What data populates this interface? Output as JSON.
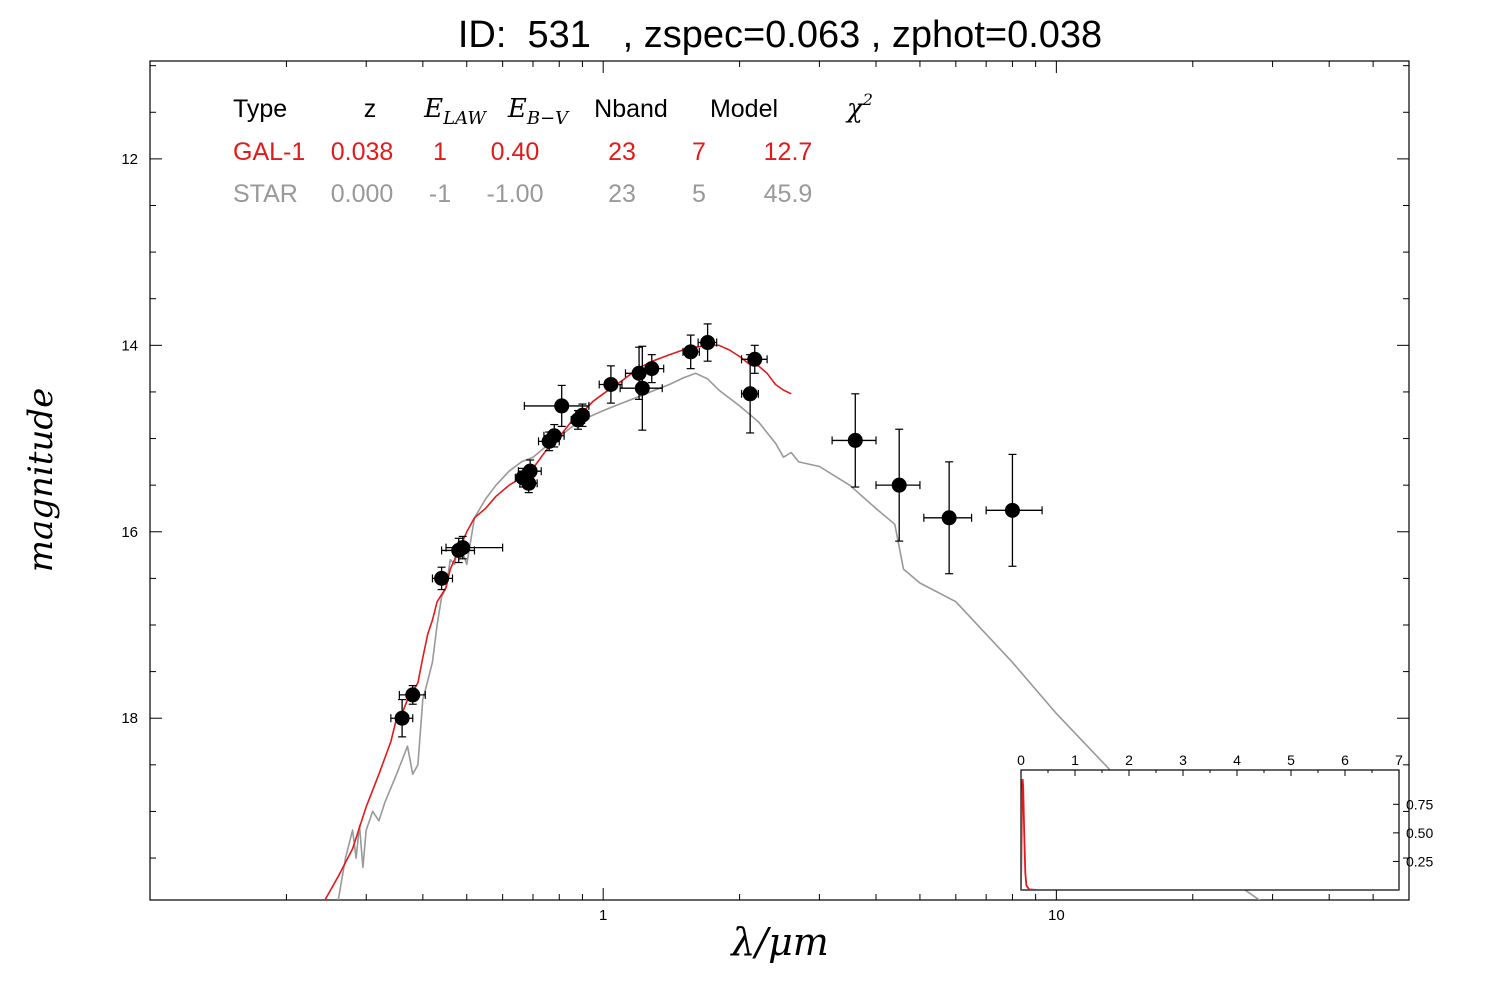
{
  "title": "ID:  531   , zspec=0.063 , zphot=0.038",
  "chart_data": [
    {
      "type": "scatter",
      "title": "ID:  531   , zspec=0.063 , zphot=0.038",
      "xlabel": "λ/μm",
      "ylabel": "magnitude",
      "xscale": "log",
      "xlim": [
        0.1,
        60
      ],
      "ylim": [
        19.95,
        10.95
      ],
      "y_inverted": true,
      "x_ticks": [
        {
          "value": 1,
          "label": "1"
        },
        {
          "value": 10,
          "label": "10"
        }
      ],
      "y_ticks": [
        {
          "value": 12,
          "label": "12"
        },
        {
          "value": 14,
          "label": "14"
        },
        {
          "value": 16,
          "label": "16"
        },
        {
          "value": 18,
          "label": "18"
        }
      ],
      "colors": {
        "galaxy": "#e31a1c",
        "star": "#999999",
        "points": "#000000"
      },
      "legend_table": {
        "headers": [
          "Type",
          "z",
          "E_LAW",
          "E_B-V",
          "Nband",
          "Model",
          "χ²"
        ],
        "rows": [
          {
            "cells": [
              "GAL-1",
              "0.038",
              "1",
              "0.40",
              "23",
              "7",
              "12.7"
            ],
            "color": "#e31a1c"
          },
          {
            "cells": [
              "STAR",
              "0.000",
              "-1",
              "-1.00",
              "23",
              "5",
              "45.9"
            ],
            "color": "#999999"
          }
        ]
      },
      "points": [
        {
          "x": 0.36,
          "y": 18.0,
          "xerr": [
            0.34,
            0.38
          ],
          "yerr": 0.2
        },
        {
          "x": 0.38,
          "y": 17.75,
          "xerr": [
            0.355,
            0.405
          ],
          "yerr": 0.1
        },
        {
          "x": 0.44,
          "y": 16.5,
          "xerr": [
            0.42,
            0.465
          ],
          "yerr": 0.12
        },
        {
          "x": 0.48,
          "y": 16.2,
          "xerr": [
            0.44,
            0.52
          ],
          "yerr": 0.13
        },
        {
          "x": 0.49,
          "y": 16.17,
          "xerr": [
            0.45,
            0.6
          ],
          "yerr": 0.12
        },
        {
          "x": 0.665,
          "y": 15.42,
          "xerr": [
            0.64,
            0.69
          ],
          "yerr": 0.1
        },
        {
          "x": 0.685,
          "y": 15.48,
          "xerr": [
            0.655,
            0.715
          ],
          "yerr": 0.1
        },
        {
          "x": 0.69,
          "y": 15.35,
          "xerr": [
            0.65,
            0.73
          ],
          "yerr": 0.12
        },
        {
          "x": 0.76,
          "y": 15.03,
          "xerr": [
            0.72,
            0.8
          ],
          "yerr": 0.1
        },
        {
          "x": 0.78,
          "y": 14.97,
          "xerr": [
            0.74,
            0.82
          ],
          "yerr": 0.12
        },
        {
          "x": 0.81,
          "y": 14.65,
          "xerr": [
            0.67,
            0.93
          ],
          "yerr": 0.22
        },
        {
          "x": 0.88,
          "y": 14.8,
          "xerr": [
            0.85,
            0.91
          ],
          "yerr": 0.1
        },
        {
          "x": 0.9,
          "y": 14.75,
          "xerr": [
            0.87,
            0.93
          ],
          "yerr": 0.12
        },
        {
          "x": 1.04,
          "y": 14.42,
          "xerr": [
            0.98,
            1.1
          ],
          "yerr": 0.2
        },
        {
          "x": 1.2,
          "y": 14.3,
          "xerr": [
            1.12,
            1.28
          ],
          "yerr": 0.28
        },
        {
          "x": 1.22,
          "y": 14.46,
          "xerr": [
            1.09,
            1.35
          ],
          "yerr": 0.45
        },
        {
          "x": 1.28,
          "y": 14.25,
          "xerr": [
            1.2,
            1.36
          ],
          "yerr": 0.15
        },
        {
          "x": 1.56,
          "y": 14.07,
          "xerr": [
            1.5,
            1.63
          ],
          "yerr": 0.18
        },
        {
          "x": 1.7,
          "y": 13.97,
          "xerr": [
            1.62,
            1.78
          ],
          "yerr": 0.2
        },
        {
          "x": 2.16,
          "y": 14.15,
          "xerr": [
            2.02,
            2.3
          ],
          "yerr": 0.15
        },
        {
          "x": 2.11,
          "y": 14.52,
          "xerr": [
            2.02,
            2.2
          ],
          "yerr": 0.42
        },
        {
          "x": 3.6,
          "y": 15.02,
          "xerr": [
            3.2,
            4.0
          ],
          "yerr": 0.5
        },
        {
          "x": 4.5,
          "y": 15.5,
          "xerr": [
            4.0,
            5.0
          ],
          "yerr": 0.6
        },
        {
          "x": 5.8,
          "y": 15.85,
          "xerr": [
            5.1,
            6.5
          ],
          "yerr": 0.6
        },
        {
          "x": 8.0,
          "y": 15.77,
          "xerr": [
            7.0,
            9.3
          ],
          "yerr": 0.6
        }
      ],
      "series": [
        {
          "color": "#e31a1c",
          "points": [
            [
              0.24,
              20.0
            ],
            [
              0.26,
              19.7
            ],
            [
              0.28,
              19.4
            ],
            [
              0.3,
              18.95
            ],
            [
              0.32,
              18.6
            ],
            [
              0.34,
              18.25
            ],
            [
              0.35,
              18.0
            ],
            [
              0.36,
              17.95
            ],
            [
              0.37,
              17.8
            ],
            [
              0.39,
              17.62
            ],
            [
              0.4,
              17.35
            ],
            [
              0.41,
              17.1
            ],
            [
              0.42,
              16.95
            ],
            [
              0.43,
              16.75
            ],
            [
              0.45,
              16.6
            ],
            [
              0.46,
              16.4
            ],
            [
              0.48,
              16.2
            ],
            [
              0.5,
              16.0
            ],
            [
              0.52,
              15.85
            ],
            [
              0.55,
              15.75
            ],
            [
              0.58,
              15.62
            ],
            [
              0.62,
              15.5
            ],
            [
              0.66,
              15.42
            ],
            [
              0.7,
              15.32
            ],
            [
              0.75,
              15.12
            ],
            [
              0.8,
              14.98
            ],
            [
              0.85,
              14.82
            ],
            [
              0.9,
              14.72
            ],
            [
              0.95,
              14.6
            ],
            [
              1.0,
              14.52
            ],
            [
              1.1,
              14.38
            ],
            [
              1.2,
              14.24
            ],
            [
              1.3,
              14.16
            ],
            [
              1.4,
              14.1
            ],
            [
              1.5,
              14.05
            ],
            [
              1.6,
              14.02
            ],
            [
              1.7,
              14.0
            ],
            [
              1.8,
              14.0
            ],
            [
              1.9,
              14.05
            ],
            [
              2.0,
              14.12
            ],
            [
              2.1,
              14.2
            ],
            [
              2.2,
              14.22
            ],
            [
              2.3,
              14.3
            ],
            [
              2.4,
              14.42
            ],
            [
              2.5,
              14.48
            ],
            [
              2.6,
              14.52
            ]
          ]
        },
        {
          "color": "#999999",
          "points": [
            [
              0.255,
              20.2
            ],
            [
              0.27,
              19.5
            ],
            [
              0.28,
              19.2
            ],
            [
              0.285,
              19.5
            ],
            [
              0.29,
              19.15
            ],
            [
              0.295,
              19.6
            ],
            [
              0.3,
              19.2
            ],
            [
              0.31,
              19.0
            ],
            [
              0.32,
              19.1
            ],
            [
              0.33,
              18.9
            ],
            [
              0.35,
              18.6
            ],
            [
              0.37,
              18.3
            ],
            [
              0.38,
              18.6
            ],
            [
              0.39,
              18.5
            ],
            [
              0.4,
              17.8
            ],
            [
              0.41,
              17.6
            ],
            [
              0.42,
              17.4
            ],
            [
              0.43,
              17.0
            ],
            [
              0.44,
              16.7
            ],
            [
              0.45,
              16.6
            ],
            [
              0.46,
              16.3
            ],
            [
              0.47,
              16.35
            ],
            [
              0.48,
              16.1
            ],
            [
              0.5,
              16.35
            ],
            [
              0.52,
              15.85
            ],
            [
              0.55,
              15.65
            ],
            [
              0.58,
              15.5
            ],
            [
              0.62,
              15.35
            ],
            [
              0.66,
              15.25
            ],
            [
              0.7,
              15.2
            ],
            [
              0.75,
              15.08
            ],
            [
              0.8,
              14.98
            ],
            [
              0.85,
              14.88
            ],
            [
              0.9,
              14.8
            ],
            [
              1.0,
              14.7
            ],
            [
              1.1,
              14.62
            ],
            [
              1.2,
              14.55
            ],
            [
              1.3,
              14.48
            ],
            [
              1.4,
              14.42
            ],
            [
              1.5,
              14.35
            ],
            [
              1.6,
              14.3
            ],
            [
              1.7,
              14.36
            ],
            [
              1.8,
              14.48
            ],
            [
              2.0,
              14.65
            ],
            [
              2.2,
              14.82
            ],
            [
              2.4,
              15.05
            ],
            [
              2.5,
              15.2
            ],
            [
              2.6,
              15.15
            ],
            [
              2.7,
              15.25
            ],
            [
              3.0,
              15.3
            ],
            [
              3.5,
              15.5
            ],
            [
              4.0,
              15.75
            ],
            [
              4.4,
              15.92
            ],
            [
              4.6,
              16.4
            ],
            [
              5.0,
              16.55
            ],
            [
              6.0,
              16.75
            ],
            [
              8.0,
              17.4
            ],
            [
              10.0,
              17.95
            ],
            [
              15.0,
              18.85
            ],
            [
              20.0,
              19.45
            ],
            [
              30.0,
              20.05
            ]
          ]
        }
      ]
    },
    {
      "type": "line",
      "xlim": [
        0,
        7
      ],
      "ylim": [
        0,
        1.05
      ],
      "x_ticks": [
        0,
        1,
        2,
        3,
        4,
        5,
        6,
        7
      ],
      "y_ticks": [
        {
          "value": 0.25,
          "label": "0.25"
        },
        {
          "value": 0.5,
          "label": "0.50"
        },
        {
          "value": 0.75,
          "label": "0.75"
        }
      ],
      "series": [
        {
          "color": "#e31a1c",
          "points": [
            [
              0,
              0
            ],
            [
              0.01,
              0.4
            ],
            [
              0.02,
              0.85
            ],
            [
              0.03,
              0.97
            ],
            [
              0.04,
              0.9
            ],
            [
              0.06,
              0.5
            ],
            [
              0.08,
              0.15
            ],
            [
              0.1,
              0.04
            ],
            [
              0.15,
              0.005
            ],
            [
              0.3,
              0
            ],
            [
              7,
              0
            ]
          ]
        }
      ]
    }
  ]
}
